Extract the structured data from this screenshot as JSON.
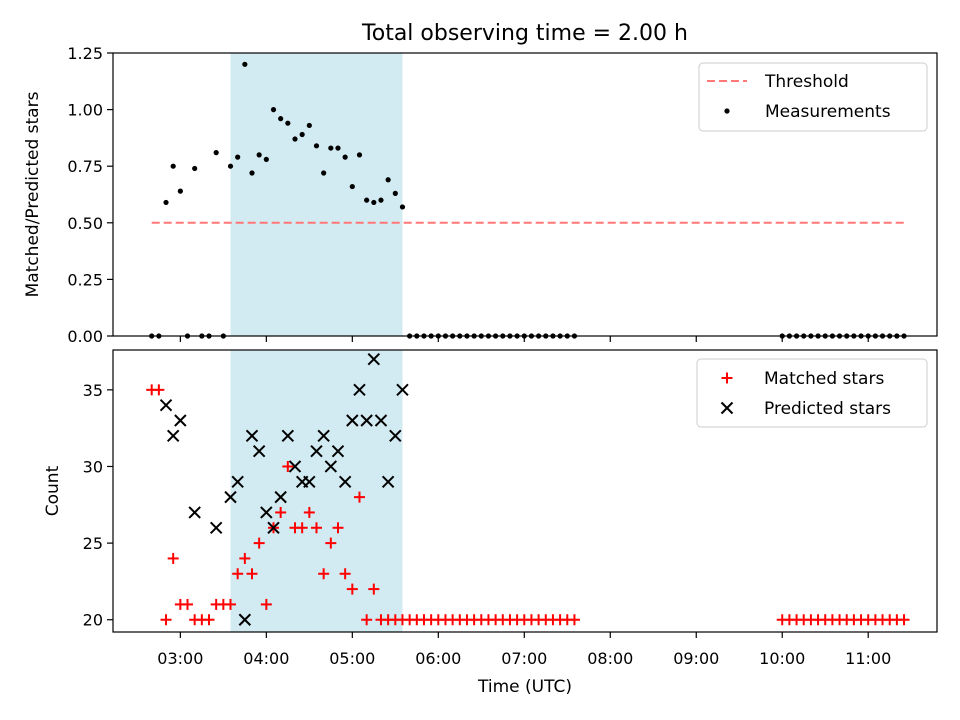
{
  "title": "Total observing time = 2.00 h",
  "xlabel": "Time (UTC)",
  "x_ticks": [
    "03:00",
    "04:00",
    "05:00",
    "06:00",
    "07:00",
    "08:00",
    "09:00",
    "10:00",
    "11:00"
  ],
  "shade": {
    "start": "03:35",
    "end": "05:35",
    "color": "#add8e6"
  },
  "chart_data": [
    {
      "type": "scatter",
      "ylabel": "Matched/Predicted stars",
      "xlim": [
        "02:13",
        "11:48"
      ],
      "ylim": [
        0,
        1.25
      ],
      "y_ticks": [
        "0.00",
        "0.25",
        "0.50",
        "0.75",
        "1.00",
        "1.25"
      ],
      "legend_position": "top-right",
      "threshold": {
        "name": "Threshold",
        "value": 0.5,
        "x_range": [
          "02:40",
          "11:25"
        ],
        "color": "#ff7777",
        "style": "dashed"
      },
      "measurements": {
        "name": "Measurements",
        "color": "#000000",
        "points": [
          [
            "02:40",
            0
          ],
          [
            "02:45",
            0
          ],
          [
            "02:50",
            0.59
          ],
          [
            "02:55",
            0.75
          ],
          [
            "03:00",
            0.64
          ],
          [
            "03:05",
            0
          ],
          [
            "03:10",
            0.74
          ],
          [
            "03:15",
            0
          ],
          [
            "03:20",
            0
          ],
          [
            "03:25",
            0.81
          ],
          [
            "03:30",
            0
          ],
          [
            "03:35",
            0.75
          ],
          [
            "03:40",
            0.79
          ],
          [
            "03:45",
            1.2
          ],
          [
            "03:50",
            0.72
          ],
          [
            "03:55",
            0.8
          ],
          [
            "04:00",
            0.78
          ],
          [
            "04:05",
            1.0
          ],
          [
            "04:10",
            0.96
          ],
          [
            "04:15",
            0.94
          ],
          [
            "04:20",
            0.87
          ],
          [
            "04:25",
            0.89
          ],
          [
            "04:30",
            0.93
          ],
          [
            "04:35",
            0.84
          ],
          [
            "04:40",
            0.72
          ],
          [
            "04:45",
            0.83
          ],
          [
            "04:50",
            0.83
          ],
          [
            "04:55",
            0.79
          ],
          [
            "05:00",
            0.66
          ],
          [
            "05:05",
            0.8
          ],
          [
            "05:10",
            0.6
          ],
          [
            "05:15",
            0.59
          ],
          [
            "05:20",
            0.6
          ],
          [
            "05:25",
            0.69
          ],
          [
            "05:30",
            0.63
          ],
          [
            "05:35",
            0.57
          ],
          [
            "05:40",
            0
          ],
          [
            "05:45",
            0
          ],
          [
            "05:50",
            0
          ],
          [
            "05:55",
            0
          ],
          [
            "06:00",
            0
          ],
          [
            "06:05",
            0
          ],
          [
            "06:10",
            0
          ],
          [
            "06:15",
            0
          ],
          [
            "06:20",
            0
          ],
          [
            "06:25",
            0
          ],
          [
            "06:30",
            0
          ],
          [
            "06:35",
            0
          ],
          [
            "06:40",
            0
          ],
          [
            "06:45",
            0
          ],
          [
            "06:50",
            0
          ],
          [
            "06:55",
            0
          ],
          [
            "07:00",
            0
          ],
          [
            "07:05",
            0
          ],
          [
            "07:10",
            0
          ],
          [
            "07:15",
            0
          ],
          [
            "07:20",
            0
          ],
          [
            "07:25",
            0
          ],
          [
            "07:30",
            0
          ],
          [
            "07:35",
            0
          ],
          [
            "10:00",
            0
          ],
          [
            "10:05",
            0
          ],
          [
            "10:10",
            0
          ],
          [
            "10:15",
            0
          ],
          [
            "10:20",
            0
          ],
          [
            "10:25",
            0
          ],
          [
            "10:30",
            0
          ],
          [
            "10:35",
            0
          ],
          [
            "10:40",
            0
          ],
          [
            "10:45",
            0
          ],
          [
            "10:50",
            0
          ],
          [
            "10:55",
            0
          ],
          [
            "11:00",
            0
          ],
          [
            "11:05",
            0
          ],
          [
            "11:10",
            0
          ],
          [
            "11:15",
            0
          ],
          [
            "11:20",
            0
          ],
          [
            "11:25",
            0
          ]
        ]
      }
    },
    {
      "type": "scatter",
      "ylabel": "Count",
      "xlim": [
        "02:13",
        "11:48"
      ],
      "ylim": [
        19.2,
        37.6
      ],
      "y_ticks": [
        "20",
        "25",
        "30",
        "35"
      ],
      "legend_position": "top-right",
      "series": [
        {
          "name": "Matched stars",
          "marker": "plus",
          "color": "#ff0000",
          "points": [
            [
              "02:40",
              35
            ],
            [
              "02:45",
              35
            ],
            [
              "02:50",
              20
            ],
            [
              "02:55",
              24
            ],
            [
              "03:00",
              21
            ],
            [
              "03:05",
              21
            ],
            [
              "03:10",
              20
            ],
            [
              "03:15",
              20
            ],
            [
              "03:20",
              20
            ],
            [
              "03:25",
              21
            ],
            [
              "03:30",
              21
            ],
            [
              "03:35",
              21
            ],
            [
              "03:40",
              23
            ],
            [
              "03:45",
              24
            ],
            [
              "03:50",
              23
            ],
            [
              "03:55",
              25
            ],
            [
              "04:00",
              21
            ],
            [
              "04:05",
              26
            ],
            [
              "04:10",
              27
            ],
            [
              "04:15",
              30
            ],
            [
              "04:20",
              26
            ],
            [
              "04:25",
              26
            ],
            [
              "04:30",
              27
            ],
            [
              "04:35",
              26
            ],
            [
              "04:40",
              23
            ],
            [
              "04:45",
              25
            ],
            [
              "04:50",
              26
            ],
            [
              "04:55",
              23
            ],
            [
              "05:00",
              22
            ],
            [
              "05:05",
              28
            ],
            [
              "05:10",
              20
            ],
            [
              "05:15",
              22
            ],
            [
              "05:20",
              20
            ],
            [
              "05:25",
              20
            ],
            [
              "05:30",
              20
            ],
            [
              "05:35",
              20
            ],
            [
              "05:40",
              20
            ],
            [
              "05:45",
              20
            ],
            [
              "05:50",
              20
            ],
            [
              "05:55",
              20
            ],
            [
              "06:00",
              20
            ],
            [
              "06:05",
              20
            ],
            [
              "06:10",
              20
            ],
            [
              "06:15",
              20
            ],
            [
              "06:20",
              20
            ],
            [
              "06:25",
              20
            ],
            [
              "06:30",
              20
            ],
            [
              "06:35",
              20
            ],
            [
              "06:40",
              20
            ],
            [
              "06:45",
              20
            ],
            [
              "06:50",
              20
            ],
            [
              "06:55",
              20
            ],
            [
              "07:00",
              20
            ],
            [
              "07:05",
              20
            ],
            [
              "07:10",
              20
            ],
            [
              "07:15",
              20
            ],
            [
              "07:20",
              20
            ],
            [
              "07:25",
              20
            ],
            [
              "07:30",
              20
            ],
            [
              "07:35",
              20
            ],
            [
              "10:00",
              20
            ],
            [
              "10:05",
              20
            ],
            [
              "10:10",
              20
            ],
            [
              "10:15",
              20
            ],
            [
              "10:20",
              20
            ],
            [
              "10:25",
              20
            ],
            [
              "10:30",
              20
            ],
            [
              "10:35",
              20
            ],
            [
              "10:40",
              20
            ],
            [
              "10:45",
              20
            ],
            [
              "10:50",
              20
            ],
            [
              "10:55",
              20
            ],
            [
              "11:00",
              20
            ],
            [
              "11:05",
              20
            ],
            [
              "11:10",
              20
            ],
            [
              "11:15",
              20
            ],
            [
              "11:20",
              20
            ],
            [
              "11:25",
              20
            ]
          ]
        },
        {
          "name": "Predicted stars",
          "marker": "x",
          "color": "#000000",
          "points": [
            [
              "02:50",
              34
            ],
            [
              "02:55",
              32
            ],
            [
              "03:00",
              33
            ],
            [
              "03:10",
              27
            ],
            [
              "03:25",
              26
            ],
            [
              "03:35",
              28
            ],
            [
              "03:40",
              29
            ],
            [
              "03:45",
              20
            ],
            [
              "03:50",
              32
            ],
            [
              "03:55",
              31
            ],
            [
              "04:00",
              27
            ],
            [
              "04:05",
              26
            ],
            [
              "04:10",
              28
            ],
            [
              "04:15",
              32
            ],
            [
              "04:20",
              30
            ],
            [
              "04:25",
              29
            ],
            [
              "04:30",
              29
            ],
            [
              "04:35",
              31
            ],
            [
              "04:40",
              32
            ],
            [
              "04:45",
              30
            ],
            [
              "04:50",
              31
            ],
            [
              "04:55",
              29
            ],
            [
              "05:00",
              33
            ],
            [
              "05:05",
              35
            ],
            [
              "05:10",
              33
            ],
            [
              "05:15",
              37
            ],
            [
              "05:20",
              33
            ],
            [
              "05:25",
              29
            ],
            [
              "05:30",
              32
            ],
            [
              "05:35",
              35
            ]
          ]
        }
      ]
    }
  ]
}
